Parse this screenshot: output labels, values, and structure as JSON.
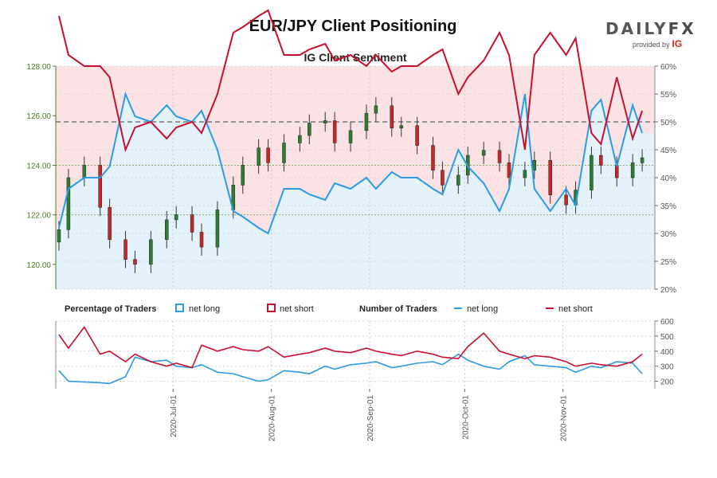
{
  "header": {
    "title": "EUR/JPY Client Positioning",
    "subtitle": "IG Client Sentiment",
    "logo_text_a": "DAILY",
    "logo_text_b": "FX",
    "logo_provided": "provided by",
    "logo_ig": "IG"
  },
  "colors": {
    "long": "#2d9be0",
    "short": "#c8102e",
    "long_fill": "#e3f2fb",
    "short_fill": "#fbe3e5",
    "candle_up": "#2e7d32",
    "candle_down": "#c62828",
    "price_axis": "#4a7a1f"
  },
  "legend": {
    "pct_label": "Percentage of Traders",
    "pct_long": "net long",
    "pct_short": "net short",
    "num_label": "Number of Traders",
    "num_long": "net long",
    "num_short": "net short"
  },
  "chart_data": [
    {
      "type": "line",
      "subtype": "candlestick-with-sentiment",
      "title": "IG Client Sentiment",
      "price_axis": {
        "position": "left",
        "ylim": [
          119,
          128
        ],
        "ticks": [
          "120.00",
          "122.00",
          "124.00",
          "126.00",
          "128.00"
        ],
        "tick_values": [
          120,
          122,
          124,
          126,
          128
        ]
      },
      "pct_axis": {
        "position": "right",
        "ylim": [
          20,
          60
        ],
        "ticks": [
          "20%",
          "25%",
          "30%",
          "35%",
          "40%",
          "45%",
          "50%",
          "55%",
          "60%"
        ],
        "tick_values": [
          20,
          25,
          30,
          35,
          40,
          45,
          50,
          55,
          60
        ]
      },
      "reference_lines": [
        {
          "axis": "pct",
          "value": 50,
          "style": "dashed"
        },
        {
          "axis": "price",
          "value": 124,
          "style": "dotted"
        },
        {
          "axis": "price",
          "value": 122,
          "style": "dotted"
        }
      ],
      "grid": true,
      "x": [
        "2020-05-26",
        "2020-05-29",
        "2020-06-03",
        "2020-06-08",
        "2020-06-11",
        "2020-06-16",
        "2020-06-19",
        "2020-06-24",
        "2020-06-29",
        "2020-07-02",
        "2020-07-07",
        "2020-07-10",
        "2020-07-15",
        "2020-07-20",
        "2020-07-23",
        "2020-07-28",
        "2020-07-31",
        "2020-08-05",
        "2020-08-10",
        "2020-08-13",
        "2020-08-18",
        "2020-08-21",
        "2020-08-26",
        "2020-08-31",
        "2020-09-03",
        "2020-09-08",
        "2020-09-11",
        "2020-09-16",
        "2020-09-21",
        "2020-09-24",
        "2020-09-29",
        "2020-10-02",
        "2020-10-07",
        "2020-10-12",
        "2020-10-15",
        "2020-10-20",
        "2020-10-23",
        "2020-10-28",
        "2020-11-02",
        "2020-11-05",
        "2020-11-10",
        "2020-11-13",
        "2020-11-18",
        "2020-11-23",
        "2020-11-26"
      ],
      "price_close": [
        121.4,
        123.5,
        124.0,
        122.3,
        121.0,
        120.2,
        120.0,
        121.0,
        121.8,
        122.0,
        121.3,
        120.7,
        122.2,
        123.2,
        124.0,
        124.7,
        124.1,
        124.9,
        125.2,
        125.7,
        125.8,
        124.9,
        125.4,
        126.1,
        126.4,
        125.5,
        125.6,
        124.8,
        123.8,
        123.2,
        123.6,
        124.4,
        124.6,
        124.1,
        123.5,
        123.8,
        124.2,
        122.8,
        122.4,
        123.0,
        124.4,
        124.0,
        123.5,
        124.1,
        124.3
      ],
      "series": [
        {
          "name": "net long",
          "axis": "pct",
          "values": [
            31,
            38,
            40,
            40,
            42,
            55,
            51,
            50,
            53,
            51,
            50,
            52,
            45,
            34,
            33,
            31,
            30,
            38,
            38,
            37,
            36,
            39,
            38,
            40,
            38,
            41,
            40,
            40,
            38,
            37,
            45,
            42,
            39,
            34,
            38,
            55,
            38,
            34,
            38,
            35,
            52,
            54,
            42,
            53,
            48
          ]
        },
        {
          "name": "net short",
          "axis": "pct",
          "values": [
            69,
            62,
            60,
            60,
            58,
            45,
            49,
            50,
            47,
            49,
            50,
            48,
            55,
            66,
            67,
            69,
            70,
            62,
            62,
            63,
            64,
            61,
            62,
            60,
            62,
            59,
            60,
            60,
            62,
            63,
            55,
            58,
            61,
            66,
            62,
            45,
            62,
            66,
            62,
            65,
            48,
            46,
            58,
            47,
            52
          ]
        }
      ]
    },
    {
      "type": "line",
      "title": "Number of Traders",
      "y_axis": {
        "position": "right",
        "ylim": [
          150,
          600
        ],
        "ticks": [
          "200",
          "300",
          "400",
          "500",
          "600"
        ],
        "tick_values": [
          200,
          300,
          400,
          500,
          600
        ]
      },
      "grid": true,
      "x_tick_labels": [
        "2020-Jul-01",
        "2020-Aug-01",
        "2020-Sep-01",
        "2020-Oct-01",
        "2020-Nov-01"
      ],
      "x_tick_dates": [
        "2020-07-01",
        "2020-08-01",
        "2020-09-01",
        "2020-10-01",
        "2020-11-01"
      ],
      "x": [
        "2020-05-26",
        "2020-05-29",
        "2020-06-03",
        "2020-06-08",
        "2020-06-11",
        "2020-06-16",
        "2020-06-19",
        "2020-06-24",
        "2020-06-29",
        "2020-07-02",
        "2020-07-07",
        "2020-07-10",
        "2020-07-15",
        "2020-07-20",
        "2020-07-23",
        "2020-07-28",
        "2020-07-31",
        "2020-08-05",
        "2020-08-10",
        "2020-08-13",
        "2020-08-18",
        "2020-08-21",
        "2020-08-26",
        "2020-08-31",
        "2020-09-03",
        "2020-09-08",
        "2020-09-11",
        "2020-09-16",
        "2020-09-21",
        "2020-09-24",
        "2020-09-29",
        "2020-10-02",
        "2020-10-07",
        "2020-10-12",
        "2020-10-15",
        "2020-10-20",
        "2020-10-23",
        "2020-10-28",
        "2020-11-02",
        "2020-11-05",
        "2020-11-10",
        "2020-11-13",
        "2020-11-18",
        "2020-11-23",
        "2020-11-26"
      ],
      "series": [
        {
          "name": "net long",
          "values": [
            270,
            200,
            195,
            190,
            185,
            230,
            360,
            330,
            340,
            300,
            290,
            310,
            260,
            250,
            230,
            200,
            210,
            270,
            260,
            250,
            300,
            280,
            310,
            320,
            330,
            290,
            300,
            320,
            330,
            310,
            380,
            340,
            300,
            280,
            330,
            370,
            310,
            300,
            290,
            260,
            300,
            290,
            330,
            320,
            250
          ]
        },
        {
          "name": "net short",
          "values": [
            510,
            420,
            560,
            380,
            400,
            330,
            380,
            330,
            300,
            320,
            290,
            440,
            400,
            430,
            410,
            400,
            430,
            360,
            380,
            390,
            420,
            400,
            390,
            420,
            400,
            380,
            370,
            400,
            380,
            360,
            350,
            430,
            520,
            400,
            380,
            350,
            370,
            360,
            330,
            300,
            320,
            310,
            300,
            330,
            380
          ]
        }
      ]
    }
  ]
}
